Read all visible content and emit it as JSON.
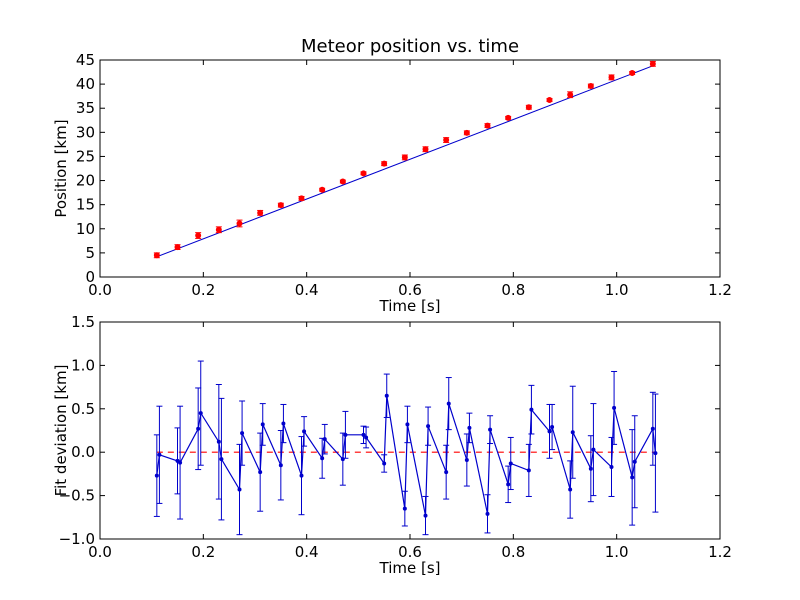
{
  "chart_data": [
    {
      "type": "scatter",
      "title": "Meteor position vs. time",
      "xlabel": "Time [s]",
      "ylabel": "Position [km]",
      "xlim": [
        0.0,
        1.2
      ],
      "ylim": [
        0,
        45
      ],
      "xticks": [
        "0.0",
        "0.2",
        "0.4",
        "0.6",
        "0.8",
        "1.0",
        "1.2"
      ],
      "yticks": [
        "0",
        "5",
        "10",
        "15",
        "20",
        "25",
        "30",
        "35",
        "40",
        "45"
      ],
      "grid": false,
      "colors": {
        "points": "#ff0000",
        "errorbars": "#ff0000",
        "fit": "#0000cc"
      },
      "series": [
        {
          "x": [
            0.11,
            0.15,
            0.19,
            0.23,
            0.27,
            0.31,
            0.35,
            0.39,
            0.43,
            0.47,
            0.51,
            0.55,
            0.59,
            0.63,
            0.67,
            0.71,
            0.75,
            0.79,
            0.83,
            0.87,
            0.91,
            0.95,
            0.99,
            1.03,
            1.07
          ],
          "y": [
            4.5,
            6.2,
            8.6,
            9.8,
            11.1,
            13.3,
            14.9,
            16.3,
            18.1,
            19.8,
            21.5,
            23.5,
            24.8,
            26.5,
            28.4,
            29.9,
            31.4,
            33.0,
            35.2,
            36.7,
            37.8,
            39.6,
            41.4,
            42.3,
            44.2
          ],
          "err": [
            0.5,
            0.5,
            0.6,
            0.6,
            0.7,
            0.5,
            0.4,
            0.4,
            0.3,
            0.3,
            0.3,
            0.4,
            0.5,
            0.5,
            0.5,
            0.4,
            0.4,
            0.3,
            0.4,
            0.3,
            0.6,
            0.4,
            0.5,
            0.3,
            0.5
          ]
        }
      ],
      "fit_line": {
        "x": [
          0.11,
          1.07
        ],
        "y": [
          4.2,
          43.8
        ]
      }
    },
    {
      "type": "line",
      "title": "",
      "xlabel": "Time [s]",
      "ylabel": "Fit deviation [km]",
      "xlim": [
        0.0,
        1.2
      ],
      "ylim": [
        -1.0,
        1.5
      ],
      "xticks": [
        "0.0",
        "0.2",
        "0.4",
        "0.6",
        "0.8",
        "1.0",
        "1.2"
      ],
      "yticks": [
        "−1.0",
        "−0.5",
        "0.0",
        "0.5",
        "1.0",
        "1.5"
      ],
      "grid": false,
      "colors": {
        "line": "#0000cc",
        "zero_line": "#ff0000"
      },
      "zero_line": 0.0,
      "series": [
        {
          "x": [
            0.11,
            0.115,
            0.15,
            0.155,
            0.19,
            0.195,
            0.23,
            0.235,
            0.27,
            0.275,
            0.31,
            0.315,
            0.35,
            0.355,
            0.39,
            0.395,
            0.43,
            0.435,
            0.47,
            0.475,
            0.51,
            0.515,
            0.55,
            0.555,
            0.59,
            0.595,
            0.63,
            0.635,
            0.67,
            0.675,
            0.71,
            0.715,
            0.75,
            0.755,
            0.79,
            0.795,
            0.83,
            0.835,
            0.87,
            0.875,
            0.91,
            0.915,
            0.95,
            0.955,
            0.99,
            0.995,
            1.03,
            1.035,
            1.07,
            1.075
          ],
          "y": [
            -0.27,
            -0.03,
            -0.1,
            -0.12,
            0.27,
            0.45,
            0.12,
            -0.08,
            -0.43,
            0.22,
            -0.23,
            0.32,
            -0.15,
            0.33,
            -0.27,
            0.24,
            -0.07,
            0.15,
            -0.08,
            0.2,
            0.2,
            0.17,
            -0.13,
            0.65,
            -0.65,
            0.32,
            -0.73,
            0.3,
            -0.23,
            0.56,
            -0.09,
            0.28,
            -0.71,
            0.26,
            -0.37,
            -0.13,
            -0.21,
            0.49,
            0.24,
            0.29,
            -0.43,
            0.23,
            -0.19,
            0.03,
            -0.17,
            0.51,
            -0.29,
            -0.11,
            0.27,
            -0.01
          ],
          "err": [
            0.47,
            0.56,
            0.38,
            0.65,
            0.47,
            0.6,
            0.66,
            0.7,
            0.52,
            0.37,
            0.45,
            0.24,
            0.4,
            0.22,
            0.45,
            0.17,
            0.23,
            0.17,
            0.3,
            0.27,
            0.1,
            0.12,
            0.1,
            0.25,
            0.2,
            0.21,
            0.22,
            0.22,
            0.31,
            0.3,
            0.3,
            0.17,
            0.22,
            0.16,
            0.21,
            0.3,
            0.3,
            0.28,
            0.31,
            0.26,
            0.33,
            0.53,
            0.38,
            0.53,
            0.34,
            0.42,
            0.55,
            0.53,
            0.42,
            0.68
          ]
        }
      ]
    }
  ]
}
